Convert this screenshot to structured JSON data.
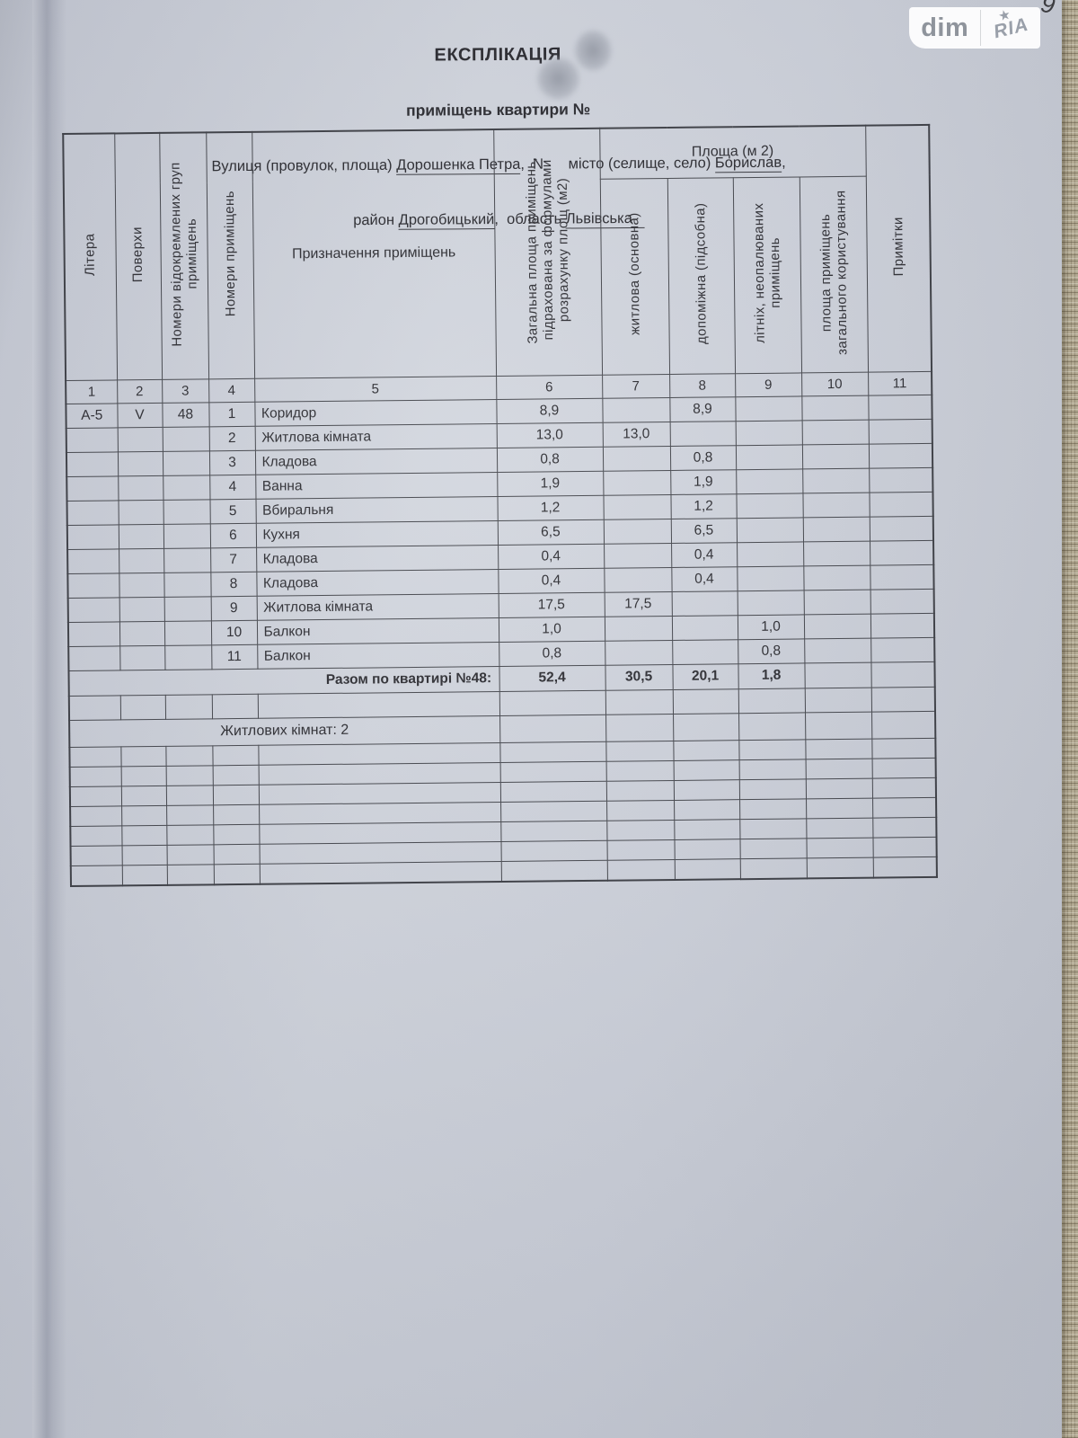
{
  "watermark": {
    "dim": "dim",
    "ria": "RIA",
    "star": "★"
  },
  "corner_mark": "9",
  "title": {
    "heading": "ЕКСПЛІКАЦІЯ",
    "subtitle": "приміщень квартири №",
    "address1": {
      "prefix": "Вулиця (провулок, площа) ",
      "street": "Дорошенка Петра",
      "mid": ",  N",
      "gap": "      ",
      "after": "місто (селище, село) ",
      "city": "Борислав",
      "tail": ","
    },
    "address2": {
      "prefix": "район ",
      "district": "Дрогобицький",
      "mid": ",  область ",
      "region": "Львівська"
    }
  },
  "table": {
    "headers": {
      "litera": "Літера",
      "floors": "Поверхи",
      "group_numbers": "Номери відокремлених груп приміщень",
      "room_numbers": "Номери приміщень",
      "purpose": "Призначення приміщень",
      "total_area": "Загальна площа приміщень, підрахована за формулами розрахунку площ (м2)",
      "area_group": "Площа (м 2)",
      "living": "житлова (основна)",
      "auxiliary": "допоміжна (підсобна)",
      "summer": "літніх, неопалюваних приміщень",
      "common": "площа приміщень загального користування",
      "notes": "Примітки"
    },
    "col_numbers": [
      "1",
      "2",
      "3",
      "4",
      "5",
      "6",
      "7",
      "8",
      "9",
      "10",
      "11"
    ],
    "rows": [
      [
        "А-5",
        "V",
        "48",
        "1",
        "Коридор",
        "8,9",
        "",
        "8,9",
        "",
        "",
        ""
      ],
      [
        "",
        "",
        "",
        "2",
        "Житлова кімната",
        "13,0",
        "13,0",
        "",
        "",
        "",
        ""
      ],
      [
        "",
        "",
        "",
        "3",
        "Кладова",
        "0,8",
        "",
        "0,8",
        "",
        "",
        ""
      ],
      [
        "",
        "",
        "",
        "4",
        "Ванна",
        "1,9",
        "",
        "1,9",
        "",
        "",
        ""
      ],
      [
        "",
        "",
        "",
        "5",
        "Вбиральня",
        "1,2",
        "",
        "1,2",
        "",
        "",
        ""
      ],
      [
        "",
        "",
        "",
        "6",
        "Кухня",
        "6,5",
        "",
        "6,5",
        "",
        "",
        ""
      ],
      [
        "",
        "",
        "",
        "7",
        "Кладова",
        "0,4",
        "",
        "0,4",
        "",
        "",
        ""
      ],
      [
        "",
        "",
        "",
        "8",
        "Кладова",
        "0,4",
        "",
        "0,4",
        "",
        "",
        ""
      ],
      [
        "",
        "",
        "",
        "9",
        "Житлова кімната",
        "17,5",
        "17,5",
        "",
        "",
        "",
        ""
      ],
      [
        "",
        "",
        "",
        "10",
        "Балкон",
        "1,0",
        "",
        "",
        "1,0",
        "",
        ""
      ],
      [
        "",
        "",
        "",
        "11",
        "Балкон",
        "0,8",
        "",
        "",
        "0,8",
        "",
        ""
      ]
    ],
    "total_row": {
      "label": "Разом по квартирі №48:",
      "values": [
        "52,4",
        "30,5",
        "20,1",
        "1,8",
        "",
        ""
      ]
    },
    "note_row": {
      "label": "Житлових кімнат: 2"
    },
    "empty_rows_after_total": 1,
    "bottom_empty_rows": 7
  }
}
